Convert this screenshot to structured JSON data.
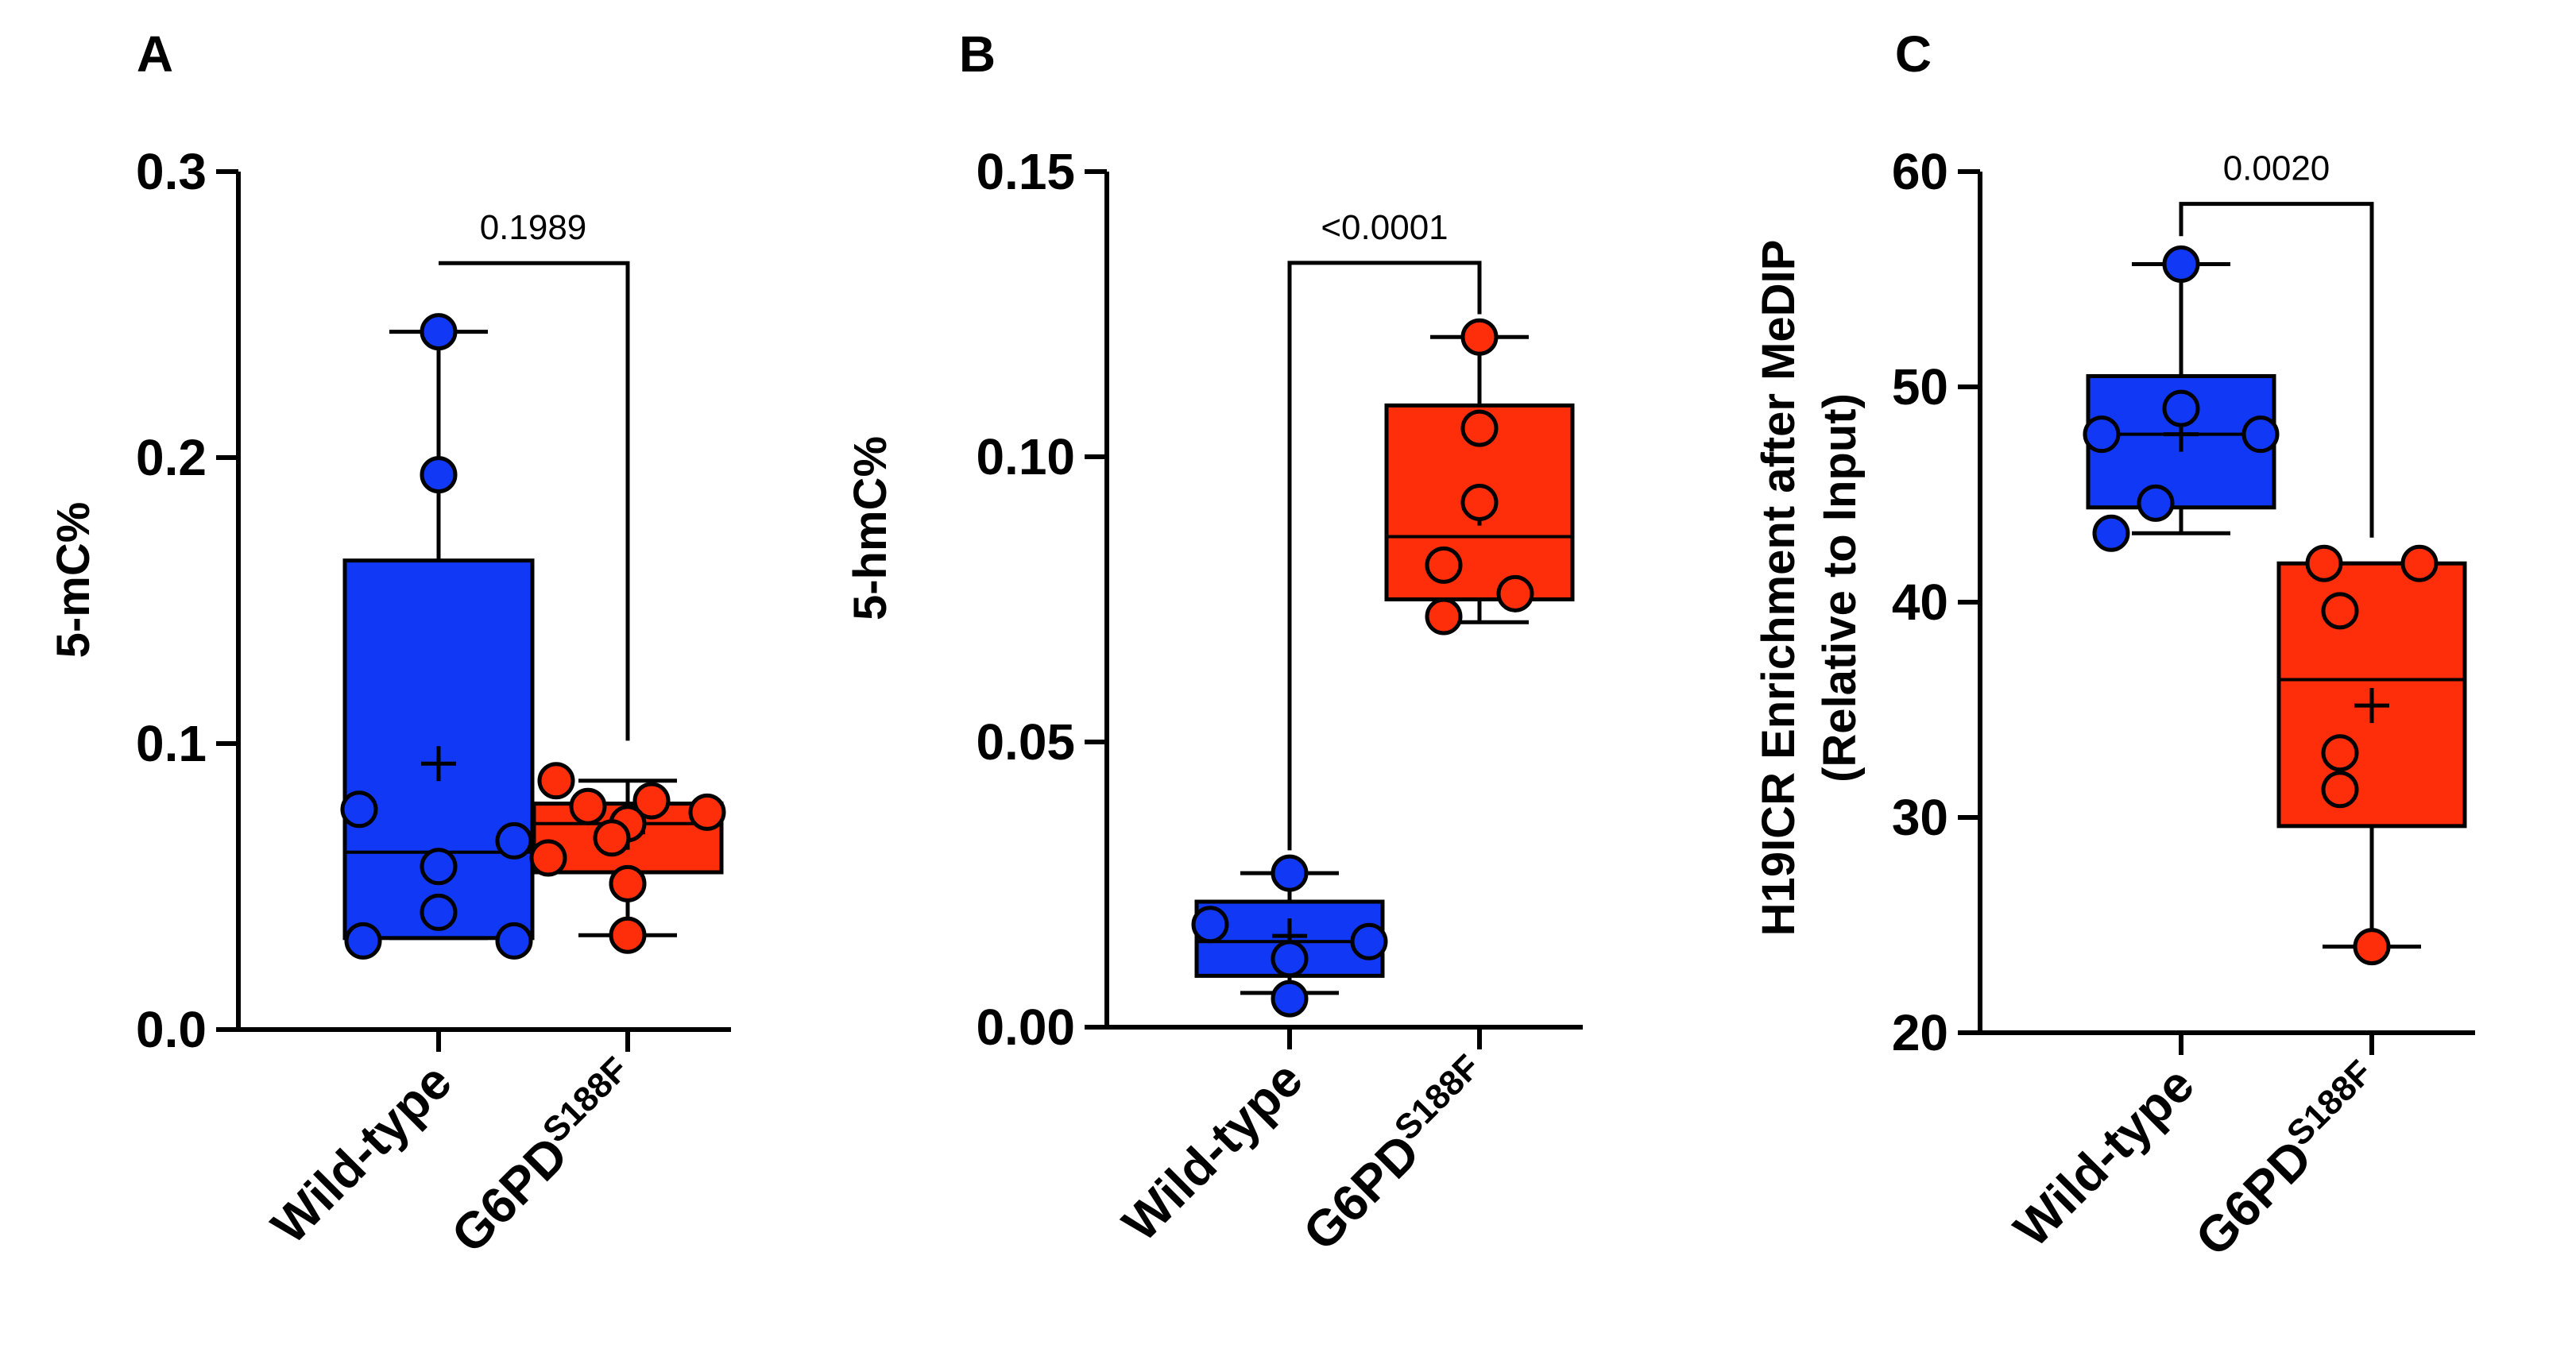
{
  "figure": {
    "colors": {
      "wild_type": "#1038f5",
      "mutant": "#ff2e0a",
      "axis": "#000000",
      "background": "#ffffff"
    }
  },
  "chart_data": [
    {
      "type": "box",
      "panel": "A",
      "ylabel": "5-mC%",
      "ylim": [
        0,
        0.3
      ],
      "yticks": [
        "0.0",
        "0.1",
        "0.2",
        "0.3"
      ],
      "ytick_values": [
        0,
        0.1,
        0.2,
        0.3
      ],
      "categories": [
        {
          "label": "Wild-type",
          "sup": ""
        },
        {
          "label": "G6PD",
          "sup": "S188F"
        }
      ],
      "series": [
        {
          "name": "Wild-type",
          "color_key": "wild_type",
          "min": 0.032,
          "q1": 0.032,
          "median": 0.062,
          "q3": 0.164,
          "max": 0.244,
          "mean": 0.093,
          "points": [
            0.244,
            0.194,
            0.077,
            0.066,
            0.057,
            0.041,
            0.031,
            0.031
          ]
        },
        {
          "name": "G6PDS188F",
          "color_key": "mutant",
          "min": 0.033,
          "q1": 0.055,
          "median": 0.072,
          "q3": 0.079,
          "max": 0.087,
          "mean": 0.069,
          "points": [
            0.087,
            0.08,
            0.078,
            0.076,
            0.072,
            0.067,
            0.06,
            0.051,
            0.033
          ]
        }
      ],
      "comparison": {
        "label": "0.1989",
        "bracket_y": 0.268,
        "left_y": 0.268,
        "right_y": 0.101
      }
    },
    {
      "type": "box",
      "panel": "B",
      "ylabel": "5-hmC%",
      "ylim": [
        0,
        0.15
      ],
      "yticks": [
        "0.00",
        "0.05",
        "0.10",
        "0.15"
      ],
      "ytick_values": [
        0,
        0.05,
        0.1,
        0.15
      ],
      "categories": [
        {
          "label": "Wild-type",
          "sup": ""
        },
        {
          "label": "G6PD",
          "sup": "S188F"
        }
      ],
      "series": [
        {
          "name": "Wild-type",
          "color_key": "wild_type",
          "min": 0.006,
          "q1": 0.009,
          "median": 0.015,
          "q3": 0.022,
          "max": 0.027,
          "mean": 0.016,
          "points": [
            0.027,
            0.018,
            0.015,
            0.012,
            0.005
          ]
        },
        {
          "name": "G6PDS188F",
          "color_key": "mutant",
          "min": 0.071,
          "q1": 0.075,
          "median": 0.086,
          "q3": 0.109,
          "max": 0.121,
          "mean": 0.091,
          "points": [
            0.121,
            0.105,
            0.092,
            0.081,
            0.076,
            0.072
          ]
        }
      ],
      "comparison": {
        "label": "<0.0001",
        "bracket_y": 0.134,
        "left_y": 0.031,
        "right_y": 0.125
      }
    },
    {
      "type": "box",
      "panel": "C",
      "ylabel": "H19ICR Enrichment after MeDIP",
      "ylabel2": "(Relative to Input)",
      "ylim": [
        20,
        60
      ],
      "yticks": [
        "20",
        "30",
        "40",
        "50",
        "60"
      ],
      "ytick_values": [
        20,
        30,
        40,
        50,
        60
      ],
      "categories": [
        {
          "label": "Wild-type",
          "sup": ""
        },
        {
          "label": "G6PD",
          "sup": "S188F"
        }
      ],
      "series": [
        {
          "name": "Wild-type",
          "color_key": "wild_type",
          "min": 43.2,
          "q1": 44.4,
          "median": 47.8,
          "q3": 50.5,
          "max": 55.7,
          "mean": 47.8,
          "points": [
            55.7,
            49.0,
            47.8,
            47.8,
            44.6,
            43.2
          ]
        },
        {
          "name": "G6PDS188F",
          "color_key": "mutant",
          "min": 24.0,
          "q1": 29.6,
          "median": 36.4,
          "q3": 41.8,
          "max": 41.8,
          "mean": 35.2,
          "points": [
            41.8,
            41.8,
            39.6,
            33.0,
            31.3,
            24.0
          ]
        }
      ],
      "comparison": {
        "label": "0.0020",
        "bracket_y": 58.5,
        "left_y": 57.0,
        "right_y": 43.0
      }
    }
  ]
}
